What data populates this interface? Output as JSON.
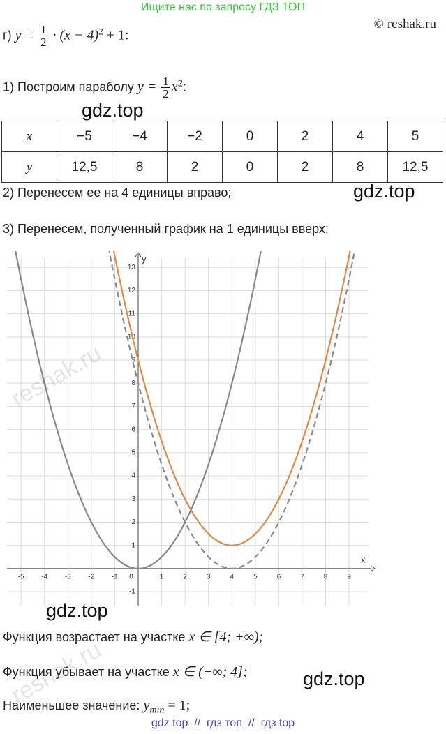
{
  "header": {
    "banner": "Ищите нас по запросу ГДЗ ТОП",
    "copyright": "© reshak.ru"
  },
  "task": {
    "label": "г)",
    "lhs": "y =",
    "num": "1",
    "den": "2",
    "rest": "· (x − 4)",
    "exp": "2",
    "tail": "+ 1:"
  },
  "steps": [
    {
      "text": "1) Построим параболу",
      "lhs": "y =",
      "num": "1",
      "den": "2",
      "var": "x",
      "exp": "2",
      "tail": ":"
    },
    {
      "text": "2) Перенесем ее на 4 единицы вправо;"
    },
    {
      "text": "3) Перенесем, полученный график на 1 единицы вверх;"
    }
  ],
  "table": {
    "rows": [
      [
        "x",
        "−5",
        "−4",
        "−2",
        "0",
        "2",
        "4",
        "5"
      ],
      [
        "y",
        "12,5",
        "8",
        "2",
        "0",
        "2",
        "8",
        "12,5"
      ]
    ]
  },
  "graph": {
    "xlim": [
      -5.6,
      9.8
    ],
    "ylim": [
      -1.6,
      13.4
    ],
    "xticks": [
      -5,
      -4,
      -3,
      -2,
      -1,
      0,
      1,
      2,
      3,
      4,
      5,
      6,
      7,
      8,
      9
    ],
    "yticks": [
      -1,
      1,
      2,
      3,
      4,
      5,
      6,
      7,
      8,
      9,
      10,
      11,
      12,
      13
    ],
    "x_label": "x",
    "y_label": "y",
    "curves": [
      {
        "a": 0.5,
        "shift_x": 0,
        "shift_y": 0,
        "color": "#8a8a8a",
        "dashed": false
      },
      {
        "a": 0.5,
        "shift_x": 4,
        "shift_y": 0,
        "color": "#8a8a8a",
        "dashed": true
      },
      {
        "a": 0.5,
        "shift_x": 4,
        "shift_y": 1,
        "color": "#e08a45",
        "dashed": false
      }
    ]
  },
  "conclusions": [
    {
      "text": "Функция возрастает на участке",
      "math": "x ∈ [4; +∞);"
    },
    {
      "text": "Функция убывает на участке",
      "math": "x ∈ (−∞; 4];"
    },
    {
      "text": "Наименьшее значение:",
      "math": "y",
      "sub": "min",
      "tail": "= 1;"
    }
  ],
  "watermarks": {
    "gdz": "gdz.top",
    "reshak": "reshak.ru"
  },
  "footer": "gdz top  //  гдз топ  //  гдз top"
}
